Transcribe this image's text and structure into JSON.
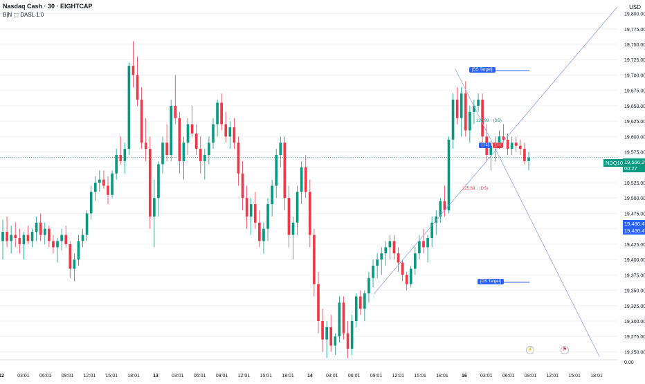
{
  "header": {
    "title": "Nasdaq Cash · 30 · EIGHTCAP",
    "indicator": "B|N ⬚ DASL 1.0"
  },
  "axis": {
    "currency": "USD",
    "price_ticks": [
      "19,800.00",
      "19,775.00",
      "19,750.00",
      "19,725.00",
      "19,700.00",
      "19,675.00",
      "19,650.00",
      "19,625.00",
      "19,600.00",
      "19,575.00",
      "19,550.00",
      "19,525.00",
      "19,500.00",
      "19,475.00",
      "19,450.00",
      "19,425.00",
      "19,400.00",
      "19,375.00",
      "19,350.00",
      "19,325.00",
      "19,300.00",
      "19,275.00",
      "19,250.00",
      "0.00"
    ],
    "time_ticks": [
      "12",
      "03:01",
      "06:01",
      "09:01",
      "12:01",
      "15:01",
      "18:01",
      "13",
      "03:01",
      "06:01",
      "09:01",
      "12:01",
      "15:01",
      "18:01",
      "14",
      "03:01",
      "06:01",
      "09:01",
      "12:01",
      "15:01",
      "18:01",
      "16",
      "03:01",
      "06:01",
      "09:01",
      "12:01",
      "15:01",
      "18:01"
    ],
    "bold_ticks": [
      "12",
      "13",
      "14",
      "16"
    ]
  },
  "annotations": {
    "ss_target": "[SS Target]",
    "ds_target": "[DS Target]",
    "upper_label": "124.99 ↑ (SS)",
    "lower_label": "225.69 ↓ (DS)",
    "box_left": "[T1]",
    "box_right": "[T]"
  },
  "price_tags": {
    "symbol": "NDQ100",
    "last_price": "19,566.39",
    "countdown": "00:27",
    "blue_1": "19,486.47",
    "blue_2": "19,466.47"
  },
  "colors": {
    "up": "#089981",
    "down": "#f23645",
    "accent": "#2962ff",
    "grid": "#f0f3fa"
  },
  "chart_data": {
    "type": "candlestick",
    "symbol": "Nasdaq Cash",
    "interval": "30",
    "ylim": [
      19237,
      19822
    ],
    "candles": [
      [
        19430,
        19465,
        19400,
        19445
      ],
      [
        19445,
        19470,
        19420,
        19430
      ],
      [
        19430,
        19455,
        19410,
        19440
      ],
      [
        19440,
        19460,
        19420,
        19435
      ],
      [
        19435,
        19450,
        19410,
        19425
      ],
      [
        19425,
        19445,
        19400,
        19440
      ],
      [
        19440,
        19455,
        19425,
        19430
      ],
      [
        19430,
        19450,
        19420,
        19445
      ],
      [
        19445,
        19470,
        19430,
        19460
      ],
      [
        19460,
        19475,
        19430,
        19440
      ],
      [
        19440,
        19460,
        19425,
        19450
      ],
      [
        19450,
        19455,
        19420,
        19430
      ],
      [
        19430,
        19440,
        19410,
        19420
      ],
      [
        19420,
        19435,
        19395,
        19430
      ],
      [
        19430,
        19450,
        19415,
        19440
      ],
      [
        19440,
        19455,
        19420,
        19425
      ],
      [
        19425,
        19430,
        19370,
        19385
      ],
      [
        19385,
        19410,
        19365,
        19400
      ],
      [
        19400,
        19440,
        19390,
        19430
      ],
      [
        19430,
        19450,
        19420,
        19440
      ],
      [
        19440,
        19480,
        19430,
        19475
      ],
      [
        19475,
        19520,
        19465,
        19510
      ],
      [
        19510,
        19535,
        19495,
        19525
      ],
      [
        19525,
        19545,
        19510,
        19530
      ],
      [
        19530,
        19545,
        19515,
        19520
      ],
      [
        19520,
        19535,
        19490,
        19505
      ],
      [
        19505,
        19545,
        19500,
        19540
      ],
      [
        19540,
        19580,
        19530,
        19570
      ],
      [
        19570,
        19600,
        19555,
        19560
      ],
      [
        19560,
        19590,
        19540,
        19580
      ],
      [
        19580,
        19720,
        19570,
        19715
      ],
      [
        19715,
        19755,
        19680,
        19700
      ],
      [
        19700,
        19730,
        19650,
        19660
      ],
      [
        19660,
        19680,
        19580,
        19590
      ],
      [
        19590,
        19630,
        19560,
        19580
      ],
      [
        19580,
        19600,
        19450,
        19470
      ],
      [
        19470,
        19530,
        19420,
        19500
      ],
      [
        19500,
        19560,
        19470,
        19555
      ],
      [
        19555,
        19600,
        19540,
        19590
      ],
      [
        19590,
        19620,
        19560,
        19570
      ],
      [
        19570,
        19660,
        19560,
        19650
      ],
      [
        19650,
        19700,
        19620,
        19630
      ],
      [
        19630,
        19640,
        19540,
        19560
      ],
      [
        19560,
        19600,
        19530,
        19590
      ],
      [
        19590,
        19630,
        19570,
        19620
      ],
      [
        19620,
        19650,
        19600,
        19605
      ],
      [
        19605,
        19620,
        19570,
        19580
      ],
      [
        19580,
        19600,
        19540,
        19560
      ],
      [
        19560,
        19580,
        19530,
        19570
      ],
      [
        19570,
        19600,
        19555,
        19590
      ],
      [
        19590,
        19630,
        19580,
        19620
      ],
      [
        19620,
        19660,
        19600,
        19655
      ],
      [
        19655,
        19670,
        19610,
        19620
      ],
      [
        19620,
        19640,
        19590,
        19600
      ],
      [
        19600,
        19625,
        19580,
        19615
      ],
      [
        19615,
        19630,
        19580,
        19590
      ],
      [
        19590,
        19600,
        19520,
        19540
      ],
      [
        19540,
        19560,
        19480,
        19500
      ],
      [
        19500,
        19520,
        19450,
        19470
      ],
      [
        19470,
        19500,
        19440,
        19490
      ],
      [
        19490,
        19510,
        19450,
        19460
      ],
      [
        19460,
        19480,
        19420,
        19430
      ],
      [
        19430,
        19460,
        19410,
        19450
      ],
      [
        19450,
        19500,
        19430,
        19490
      ],
      [
        19490,
        19530,
        19470,
        19520
      ],
      [
        19520,
        19580,
        19500,
        19570
      ],
      [
        19570,
        19600,
        19550,
        19590
      ],
      [
        19590,
        19600,
        19480,
        19500
      ],
      [
        19500,
        19520,
        19420,
        19440
      ],
      [
        19440,
        19470,
        19400,
        19460
      ],
      [
        19460,
        19520,
        19440,
        19510
      ],
      [
        19510,
        19560,
        19490,
        19550
      ],
      [
        19550,
        19570,
        19500,
        19510
      ],
      [
        19510,
        19530,
        19420,
        19440
      ],
      [
        19440,
        19450,
        19340,
        19360
      ],
      [
        19360,
        19380,
        19280,
        19300
      ],
      [
        19300,
        19320,
        19250,
        19270
      ],
      [
        19270,
        19300,
        19240,
        19290
      ],
      [
        19290,
        19310,
        19250,
        19260
      ],
      [
        19260,
        19280,
        19245,
        19275
      ],
      [
        19275,
        19340,
        19265,
        19330
      ],
      [
        19330,
        19340,
        19270,
        19280
      ],
      [
        19280,
        19300,
        19240,
        19255
      ],
      [
        19255,
        19310,
        19245,
        19300
      ],
      [
        19300,
        19345,
        19290,
        19340
      ],
      [
        19340,
        19350,
        19310,
        19320
      ],
      [
        19320,
        19350,
        19300,
        19345
      ],
      [
        19345,
        19380,
        19330,
        19370
      ],
      [
        19370,
        19400,
        19355,
        19390
      ],
      [
        19390,
        19410,
        19370,
        19400
      ],
      [
        19400,
        19420,
        19375,
        19410
      ],
      [
        19410,
        19430,
        19390,
        19420
      ],
      [
        19420,
        19440,
        19400,
        19430
      ],
      [
        19430,
        19440,
        19400,
        19410
      ],
      [
        19410,
        19420,
        19380,
        19395
      ],
      [
        19395,
        19400,
        19365,
        19375
      ],
      [
        19375,
        19380,
        19350,
        19360
      ],
      [
        19360,
        19390,
        19355,
        19385
      ],
      [
        19385,
        19420,
        19375,
        19410
      ],
      [
        19410,
        19440,
        19400,
        19430
      ],
      [
        19430,
        19450,
        19410,
        19420
      ],
      [
        19420,
        19440,
        19395,
        19435
      ],
      [
        19435,
        19470,
        19420,
        19460
      ],
      [
        19460,
        19480,
        19440,
        19470
      ],
      [
        19470,
        19500,
        19460,
        19495
      ],
      [
        19495,
        19520,
        19470,
        19480
      ],
      [
        19480,
        19600,
        19475,
        19595
      ],
      [
        19595,
        19670,
        19580,
        19660
      ],
      [
        19660,
        19680,
        19620,
        19630
      ],
      [
        19630,
        19680,
        19600,
        19670
      ],
      [
        19670,
        19690,
        19600,
        19610
      ],
      [
        19610,
        19650,
        19590,
        19640
      ],
      [
        19640,
        19660,
        19620,
        19650
      ],
      [
        19650,
        19670,
        19640,
        19660
      ],
      [
        19660,
        19670,
        19590,
        19600
      ],
      [
        19600,
        19620,
        19560,
        19570
      ],
      [
        19570,
        19590,
        19545,
        19585
      ],
      [
        19585,
        19600,
        19560,
        19590
      ],
      [
        19590,
        19610,
        19580,
        19600
      ],
      [
        19600,
        19620,
        19590,
        19595
      ],
      [
        19595,
        19605,
        19570,
        19580
      ],
      [
        19580,
        19600,
        19570,
        19590
      ],
      [
        19590,
        19600,
        19575,
        19585
      ],
      [
        19585,
        19595,
        19570,
        19580
      ],
      [
        19580,
        19590,
        19555,
        19560
      ],
      [
        19560,
        19575,
        19545,
        19566
      ]
    ],
    "lines": [
      {
        "name": "SS trendline"
      },
      {
        "name": "DS trendline"
      }
    ]
  }
}
